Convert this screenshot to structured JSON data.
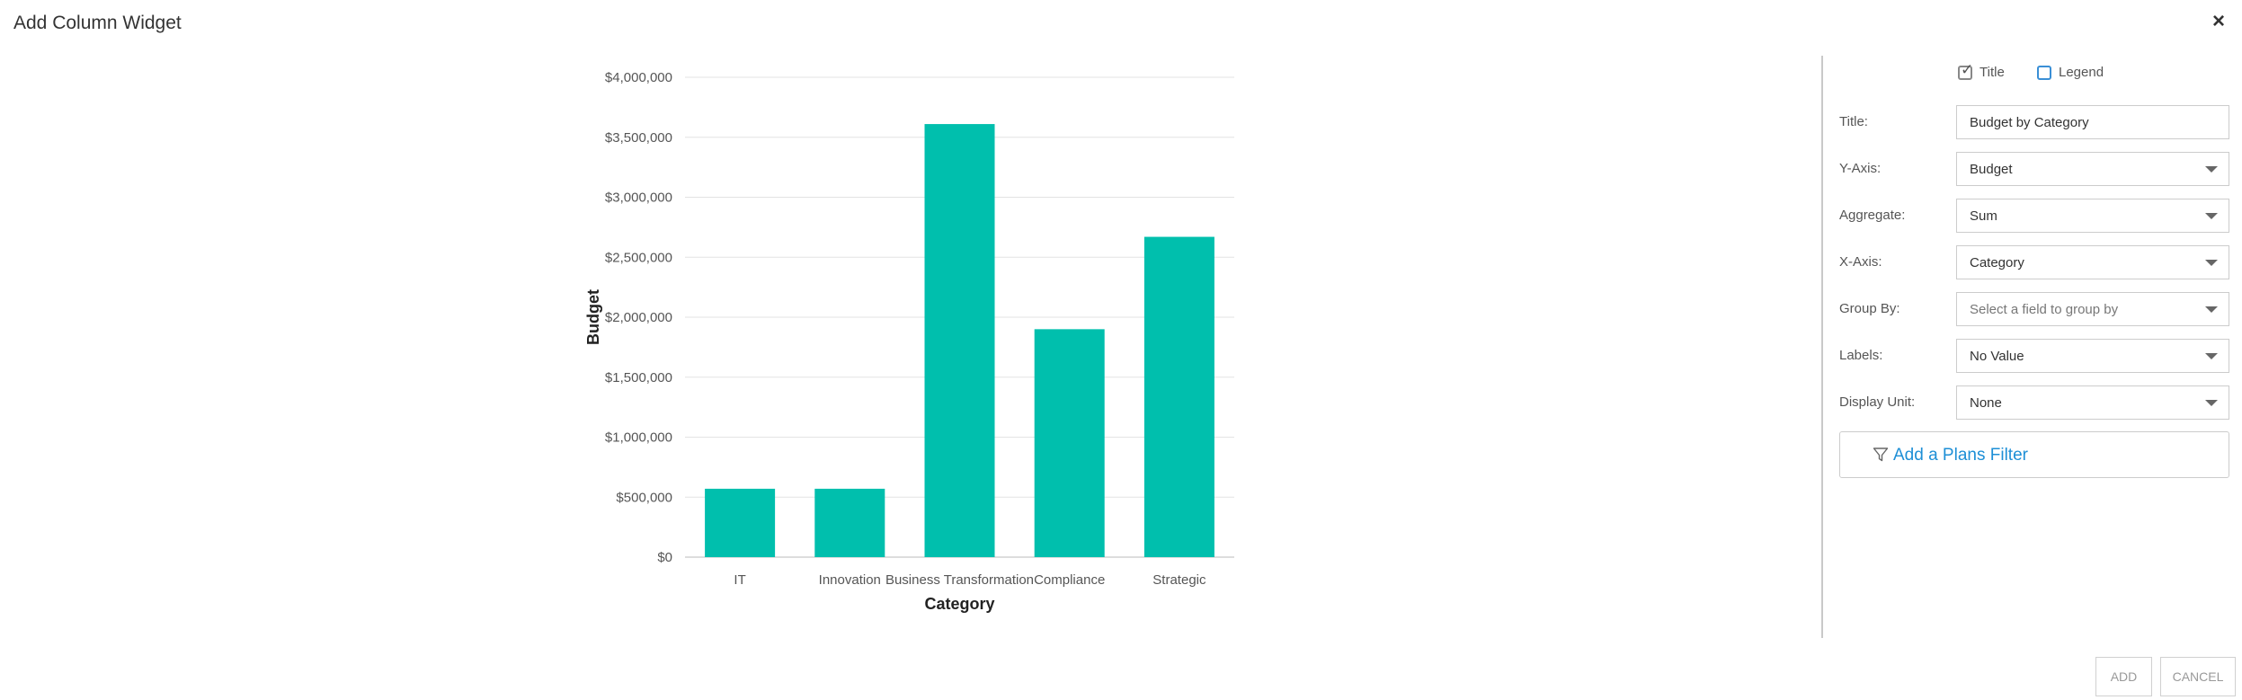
{
  "dialog": {
    "title": "Add Column Widget"
  },
  "colors": {
    "bar": "#00bfad",
    "link": "#1e8fd6"
  },
  "icons": {
    "close": "close-icon",
    "filter": "filter-icon",
    "dropdown": "chevron-down-icon"
  },
  "panel": {
    "toggles": [
      {
        "label": "Title",
        "checked": true
      },
      {
        "label": "Legend",
        "checked": false
      }
    ],
    "fields": [
      {
        "label": "Title:",
        "value": "Budget by Category",
        "type": "text"
      },
      {
        "label": "Y-Axis:",
        "value": "Budget",
        "type": "select"
      },
      {
        "label": "Aggregate:",
        "value": "Sum",
        "type": "select"
      },
      {
        "label": "X-Axis:",
        "value": "Category",
        "type": "select"
      },
      {
        "label": "Group By:",
        "value": "",
        "placeholder": "Select a field to group by",
        "type": "select"
      },
      {
        "label": "Labels:",
        "value": "No Value",
        "type": "select"
      },
      {
        "label": "Display Unit:",
        "value": "None",
        "type": "select"
      }
    ],
    "filter_button": "Add a Plans Filter"
  },
  "footer": {
    "add": "ADD",
    "cancel": "CANCEL"
  },
  "chart_data": {
    "type": "bar",
    "categories": [
      "IT",
      "Innovation",
      "Business Transformation",
      "Compliance",
      "Strategic"
    ],
    "values": [
      570000,
      570000,
      3610000,
      1900000,
      2670000
    ],
    "xlabel": "Category",
    "ylabel": "Budget",
    "ylim": [
      0,
      4000000
    ],
    "yticks": [
      "$0",
      "$500,000",
      "$1,000,000",
      "$1,500,000",
      "$2,000,000",
      "$2,500,000",
      "$3,000,000",
      "$3,500,000",
      "$4,000,000"
    ],
    "grid": true
  }
}
